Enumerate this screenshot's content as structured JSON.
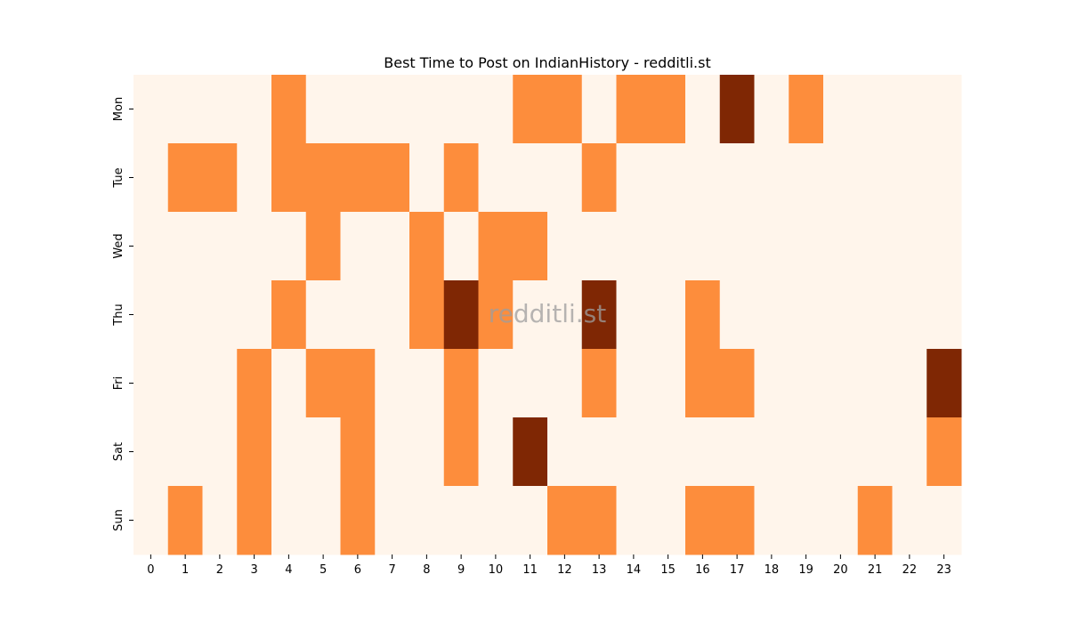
{
  "chart_data": {
    "type": "heatmap",
    "title": "Best Time to Post on IndianHistory - redditli.st",
    "watermark": "redditli.st",
    "xlabel": "",
    "ylabel": "",
    "x": [
      "0",
      "1",
      "2",
      "3",
      "4",
      "5",
      "6",
      "7",
      "8",
      "9",
      "10",
      "11",
      "12",
      "13",
      "14",
      "15",
      "16",
      "17",
      "18",
      "19",
      "20",
      "21",
      "22",
      "23"
    ],
    "y": [
      "Mon",
      "Tue",
      "Wed",
      "Thu",
      "Fri",
      "Sat",
      "Sun"
    ],
    "values": [
      [
        0,
        0,
        0,
        0,
        1,
        0,
        0,
        0,
        0,
        0,
        0,
        1,
        1,
        0,
        1,
        1,
        0,
        2,
        0,
        1,
        0,
        0,
        0,
        0
      ],
      [
        0,
        1,
        1,
        0,
        1,
        1,
        1,
        1,
        0,
        1,
        0,
        0,
        0,
        1,
        0,
        0,
        0,
        0,
        0,
        0,
        0,
        0,
        0,
        0
      ],
      [
        0,
        0,
        0,
        0,
        0,
        1,
        0,
        0,
        1,
        0,
        1,
        1,
        0,
        0,
        0,
        0,
        0,
        0,
        0,
        0,
        0,
        0,
        0,
        0
      ],
      [
        0,
        0,
        0,
        0,
        1,
        0,
        0,
        0,
        1,
        2,
        1,
        0,
        0,
        2,
        0,
        0,
        1,
        0,
        0,
        0,
        0,
        0,
        0,
        0
      ],
      [
        0,
        0,
        0,
        1,
        0,
        1,
        1,
        0,
        0,
        1,
        0,
        0,
        0,
        1,
        0,
        0,
        1,
        1,
        0,
        0,
        0,
        0,
        0,
        2
      ],
      [
        0,
        0,
        0,
        1,
        0,
        0,
        1,
        0,
        0,
        1,
        0,
        2,
        0,
        0,
        0,
        0,
        0,
        0,
        0,
        0,
        0,
        0,
        0,
        1
      ],
      [
        0,
        1,
        0,
        1,
        0,
        0,
        1,
        0,
        0,
        0,
        0,
        0,
        1,
        1,
        0,
        0,
        1,
        1,
        0,
        0,
        0,
        1,
        0,
        0
      ]
    ],
    "colors": [
      "#fff5eb",
      "#fd8d3c",
      "#7f2704"
    ],
    "grid": false,
    "legend": "none"
  }
}
